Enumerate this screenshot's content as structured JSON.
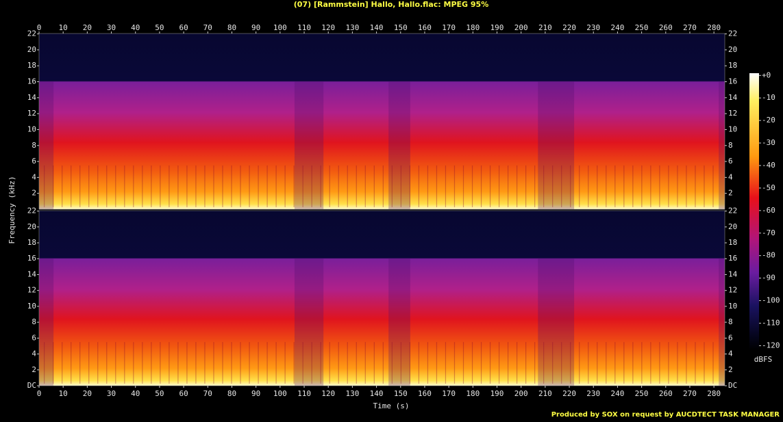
{
  "chart_data": {
    "type": "spectrogram",
    "title": "(07) [Rammstein] Hallo, Hallo.flac: MPEG 95%",
    "xlabel": "Time (s)",
    "ylabel": "Frequency (kHz)",
    "footer": "Produced by SOX on request by AUCDTECT TASK MANAGER",
    "xlim": [
      0,
      284.5
    ],
    "xticks": [
      0,
      10,
      20,
      30,
      40,
      50,
      60,
      70,
      80,
      90,
      100,
      110,
      120,
      130,
      140,
      150,
      160,
      170,
      180,
      190,
      200,
      210,
      220,
      230,
      240,
      250,
      260,
      270,
      280
    ],
    "ylim": [
      0,
      22.05
    ],
    "panels": [
      {
        "yticks": [
          2,
          4,
          6,
          8,
          10,
          12,
          14,
          16,
          18,
          20,
          22
        ]
      },
      {
        "yticks": [
          {
            "value": 0,
            "label": "DC"
          },
          2,
          4,
          6,
          8,
          10,
          12,
          14,
          16,
          18,
          20,
          22
        ]
      }
    ],
    "colorbar": {
      "label": "dBFS",
      "lim": [
        -122,
        1
      ],
      "ticks": [
        {
          "value": 0,
          "label": "+0"
        },
        -10,
        -20,
        -30,
        -40,
        -50,
        -60,
        -70,
        -80,
        -90,
        -100,
        -110,
        -120
      ]
    }
  }
}
